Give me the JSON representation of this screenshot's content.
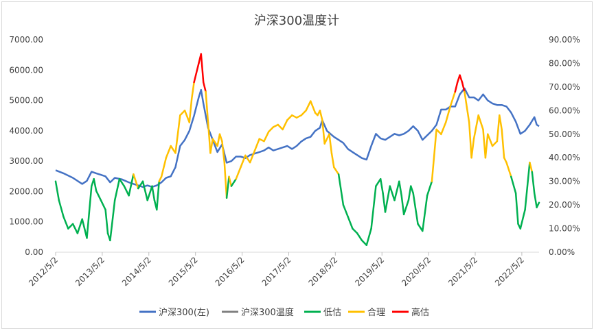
{
  "chart_data": {
    "type": "line",
    "title": "沪深300温度计",
    "x_tick_labels": [
      "2012/5/2",
      "2013/5/2",
      "2014/5/2",
      "2015/5/2",
      "2016/5/2",
      "2017/5/2",
      "2018/5/2",
      "2019/5/2",
      "2020/5/2",
      "2021/5/2",
      "2022/5/2"
    ],
    "x_range_years": [
      2012.33,
      2022.7
    ],
    "y_left": {
      "ticks": [
        "0.00",
        "1000.00",
        "2000.00",
        "3000.00",
        "4000.00",
        "5000.00",
        "6000.00",
        "7000.00"
      ],
      "range": [
        0,
        7000
      ]
    },
    "y_right": {
      "ticks": [
        "0.00%",
        "10.00%",
        "20.00%",
        "30.00%",
        "40.00%",
        "50.00%",
        "60.00%",
        "70.00%",
        "80.00%",
        "90.00%"
      ],
      "range": [
        0,
        90
      ]
    },
    "legend": [
      {
        "label": "沪深300(左)",
        "color": "#4472c4"
      },
      {
        "label": "沪深300温度",
        "color": "#808080"
      },
      {
        "label": "低估",
        "color": "#00b050"
      },
      {
        "label": "合理",
        "color": "#ffc000"
      },
      {
        "label": "高估",
        "color": "#ff0000"
      }
    ],
    "thresholds_pct": {
      "low_max": 30,
      "high_min": 70
    },
    "series": [
      {
        "name": "沪深300(左)",
        "axis": "left",
        "points": [
          [
            2012.33,
            2700
          ],
          [
            2012.5,
            2600
          ],
          [
            2012.7,
            2450
          ],
          [
            2012.9,
            2250
          ],
          [
            2013.0,
            2350
          ],
          [
            2013.1,
            2650
          ],
          [
            2013.2,
            2600
          ],
          [
            2013.3,
            2550
          ],
          [
            2013.4,
            2500
          ],
          [
            2013.5,
            2300
          ],
          [
            2013.6,
            2450
          ],
          [
            2013.75,
            2400
          ],
          [
            2013.9,
            2300
          ],
          [
            2014.0,
            2250
          ],
          [
            2014.1,
            2200
          ],
          [
            2014.2,
            2150
          ],
          [
            2014.3,
            2200
          ],
          [
            2014.4,
            2150
          ],
          [
            2014.5,
            2200
          ],
          [
            2014.6,
            2300
          ],
          [
            2014.7,
            2450
          ],
          [
            2014.8,
            2500
          ],
          [
            2014.9,
            2800
          ],
          [
            2015.0,
            3500
          ],
          [
            2015.1,
            3700
          ],
          [
            2015.2,
            4000
          ],
          [
            2015.3,
            4500
          ],
          [
            2015.4,
            5100
          ],
          [
            2015.45,
            5350
          ],
          [
            2015.5,
            4900
          ],
          [
            2015.6,
            4100
          ],
          [
            2015.7,
            3700
          ],
          [
            2015.8,
            3300
          ],
          [
            2015.9,
            3550
          ],
          [
            2016.0,
            2950
          ],
          [
            2016.1,
            3000
          ],
          [
            2016.2,
            3150
          ],
          [
            2016.3,
            3150
          ],
          [
            2016.4,
            3100
          ],
          [
            2016.5,
            3200
          ],
          [
            2016.6,
            3250
          ],
          [
            2016.7,
            3300
          ],
          [
            2016.8,
            3350
          ],
          [
            2016.9,
            3450
          ],
          [
            2017.0,
            3350
          ],
          [
            2017.1,
            3400
          ],
          [
            2017.2,
            3450
          ],
          [
            2017.3,
            3500
          ],
          [
            2017.4,
            3400
          ],
          [
            2017.5,
            3500
          ],
          [
            2017.6,
            3650
          ],
          [
            2017.7,
            3750
          ],
          [
            2017.8,
            3800
          ],
          [
            2017.9,
            4000
          ],
          [
            2018.0,
            4100
          ],
          [
            2018.05,
            4350
          ],
          [
            2018.15,
            4000
          ],
          [
            2018.3,
            3800
          ],
          [
            2018.4,
            3700
          ],
          [
            2018.5,
            3600
          ],
          [
            2018.6,
            3400
          ],
          [
            2018.7,
            3300
          ],
          [
            2018.8,
            3200
          ],
          [
            2018.9,
            3100
          ],
          [
            2019.0,
            3050
          ],
          [
            2019.1,
            3500
          ],
          [
            2019.2,
            3900
          ],
          [
            2019.3,
            3750
          ],
          [
            2019.4,
            3700
          ],
          [
            2019.5,
            3800
          ],
          [
            2019.6,
            3900
          ],
          [
            2019.7,
            3850
          ],
          [
            2019.8,
            3900
          ],
          [
            2019.9,
            4000
          ],
          [
            2020.0,
            4150
          ],
          [
            2020.1,
            4000
          ],
          [
            2020.2,
            3700
          ],
          [
            2020.3,
            3850
          ],
          [
            2020.4,
            4000
          ],
          [
            2020.5,
            4200
          ],
          [
            2020.6,
            4700
          ],
          [
            2020.7,
            4700
          ],
          [
            2020.8,
            4800
          ],
          [
            2020.9,
            4800
          ],
          [
            2021.0,
            5200
          ],
          [
            2021.1,
            5400
          ],
          [
            2021.2,
            5100
          ],
          [
            2021.3,
            5100
          ],
          [
            2021.4,
            5000
          ],
          [
            2021.5,
            5200
          ],
          [
            2021.6,
            5000
          ],
          [
            2021.7,
            4900
          ],
          [
            2021.8,
            4850
          ],
          [
            2021.9,
            4850
          ],
          [
            2022.0,
            4800
          ],
          [
            2022.1,
            4600
          ],
          [
            2022.2,
            4300
          ],
          [
            2022.3,
            3900
          ],
          [
            2022.4,
            4000
          ],
          [
            2022.5,
            4200
          ],
          [
            2022.6,
            4450
          ],
          [
            2022.65,
            4200
          ],
          [
            2022.7,
            4150
          ]
        ]
      },
      {
        "name": "沪深300温度",
        "axis": "right",
        "points": [
          [
            2012.33,
            30
          ],
          [
            2012.4,
            22
          ],
          [
            2012.5,
            15
          ],
          [
            2012.6,
            10
          ],
          [
            2012.7,
            12
          ],
          [
            2012.8,
            8
          ],
          [
            2012.9,
            14
          ],
          [
            2013.0,
            6
          ],
          [
            2013.1,
            28
          ],
          [
            2013.15,
            31
          ],
          [
            2013.2,
            26
          ],
          [
            2013.3,
            22
          ],
          [
            2013.4,
            18
          ],
          [
            2013.45,
            8
          ],
          [
            2013.5,
            5
          ],
          [
            2013.6,
            22
          ],
          [
            2013.7,
            31
          ],
          [
            2013.8,
            28
          ],
          [
            2013.9,
            24
          ],
          [
            2014.0,
            33
          ],
          [
            2014.1,
            27
          ],
          [
            2014.2,
            30
          ],
          [
            2014.3,
            22
          ],
          [
            2014.4,
            28
          ],
          [
            2014.45,
            22
          ],
          [
            2014.5,
            18
          ],
          [
            2014.55,
            30
          ],
          [
            2014.6,
            32
          ],
          [
            2014.7,
            40
          ],
          [
            2014.8,
            45
          ],
          [
            2014.9,
            42
          ],
          [
            2015.0,
            58
          ],
          [
            2015.1,
            60
          ],
          [
            2015.2,
            55
          ],
          [
            2015.25,
            65
          ],
          [
            2015.3,
            72
          ],
          [
            2015.4,
            80
          ],
          [
            2015.45,
            84
          ],
          [
            2015.5,
            72
          ],
          [
            2015.55,
            68
          ],
          [
            2015.6,
            55
          ],
          [
            2015.65,
            42
          ],
          [
            2015.7,
            48
          ],
          [
            2015.8,
            45
          ],
          [
            2015.85,
            50
          ],
          [
            2015.9,
            47
          ],
          [
            2015.95,
            38
          ],
          [
            2016.0,
            23
          ],
          [
            2016.05,
            32
          ],
          [
            2016.1,
            28
          ],
          [
            2016.2,
            31
          ],
          [
            2016.3,
            36
          ],
          [
            2016.4,
            41
          ],
          [
            2016.5,
            38
          ],
          [
            2016.6,
            43
          ],
          [
            2016.7,
            48
          ],
          [
            2016.8,
            47
          ],
          [
            2016.9,
            51
          ],
          [
            2017.0,
            53
          ],
          [
            2017.1,
            54
          ],
          [
            2017.2,
            52
          ],
          [
            2017.3,
            56
          ],
          [
            2017.4,
            58
          ],
          [
            2017.5,
            57
          ],
          [
            2017.6,
            58
          ],
          [
            2017.7,
            60
          ],
          [
            2017.8,
            64
          ],
          [
            2017.9,
            59
          ],
          [
            2017.95,
            58
          ],
          [
            2018.0,
            60
          ],
          [
            2018.05,
            56
          ],
          [
            2018.1,
            46
          ],
          [
            2018.2,
            50
          ],
          [
            2018.25,
            42
          ],
          [
            2018.3,
            36
          ],
          [
            2018.4,
            33
          ],
          [
            2018.5,
            20
          ],
          [
            2018.6,
            15
          ],
          [
            2018.7,
            10
          ],
          [
            2018.8,
            8
          ],
          [
            2018.9,
            5
          ],
          [
            2019.0,
            3
          ],
          [
            2019.1,
            10
          ],
          [
            2019.2,
            28
          ],
          [
            2019.3,
            31
          ],
          [
            2019.35,
            25
          ],
          [
            2019.4,
            17
          ],
          [
            2019.5,
            28
          ],
          [
            2019.6,
            22
          ],
          [
            2019.7,
            30
          ],
          [
            2019.75,
            24
          ],
          [
            2019.8,
            16
          ],
          [
            2019.9,
            22
          ],
          [
            2019.95,
            28
          ],
          [
            2020.0,
            25
          ],
          [
            2020.1,
            12
          ],
          [
            2020.2,
            9
          ],
          [
            2020.3,
            24
          ],
          [
            2020.4,
            30
          ],
          [
            2020.5,
            52
          ],
          [
            2020.6,
            50
          ],
          [
            2020.7,
            55
          ],
          [
            2020.8,
            62
          ],
          [
            2020.9,
            68
          ],
          [
            2020.95,
            72
          ],
          [
            2021.0,
            75
          ],
          [
            2021.05,
            72
          ],
          [
            2021.1,
            68
          ],
          [
            2021.2,
            55
          ],
          [
            2021.25,
            40
          ],
          [
            2021.3,
            48
          ],
          [
            2021.4,
            58
          ],
          [
            2021.5,
            52
          ],
          [
            2021.55,
            40
          ],
          [
            2021.6,
            50
          ],
          [
            2021.7,
            45
          ],
          [
            2021.8,
            47
          ],
          [
            2021.85,
            58
          ],
          [
            2021.9,
            52
          ],
          [
            2021.95,
            40
          ],
          [
            2022.0,
            38
          ],
          [
            2022.1,
            32
          ],
          [
            2022.2,
            25
          ],
          [
            2022.25,
            12
          ],
          [
            2022.3,
            10
          ],
          [
            2022.4,
            18
          ],
          [
            2022.5,
            38
          ],
          [
            2022.55,
            34
          ],
          [
            2022.6,
            25
          ],
          [
            2022.65,
            19
          ],
          [
            2022.7,
            21
          ]
        ]
      }
    ]
  }
}
